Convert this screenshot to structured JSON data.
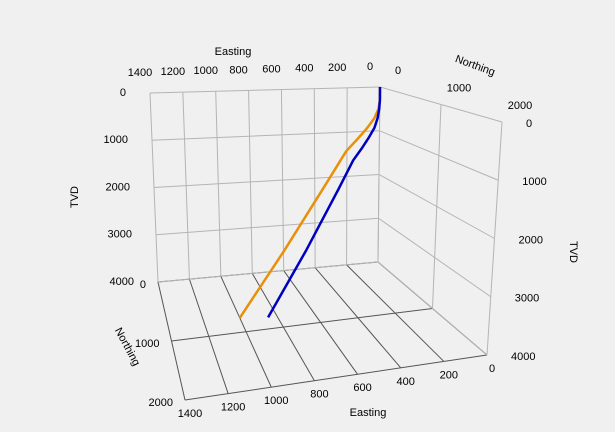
{
  "chart_data": {
    "type": "line3d",
    "xlabel": "Easting",
    "ylabel": "Northing",
    "zlabel": "TVD",
    "xlim": [
      0,
      1400
    ],
    "xticks": [
      0,
      200,
      400,
      600,
      800,
      1000,
      1200,
      1400
    ],
    "ylim": [
      0,
      2000
    ],
    "yticks": [
      0,
      1000,
      2000
    ],
    "zlim": [
      0,
      4000
    ],
    "zticks": [
      0,
      1000,
      2000,
      3000,
      4000
    ],
    "grid": true,
    "series": [
      {
        "color": "#e8900a",
        "x": [
          0,
          0,
          10,
          40,
          100,
          180,
          270,
          459,
          729,
          1000
        ],
        "y": [
          0,
          0,
          5,
          20,
          60,
          120,
          190,
          335,
          542,
          750
        ],
        "z": [
          0,
          300,
          500,
          700,
          900,
          1100,
          1300,
          2000,
          3000,
          4000
        ]
      },
      {
        "color": "#0000c0",
        "x": [
          0,
          0,
          5,
          20,
          50,
          100,
          160,
          230,
          354,
          602,
          850
        ],
        "y": [
          0,
          0,
          5,
          20,
          50,
          90,
          140,
          200,
          320,
          560,
          800
        ],
        "z": [
          0,
          300,
          500,
          700,
          900,
          1100,
          1300,
          1500,
          2000,
          3000,
          4000
        ]
      }
    ]
  }
}
